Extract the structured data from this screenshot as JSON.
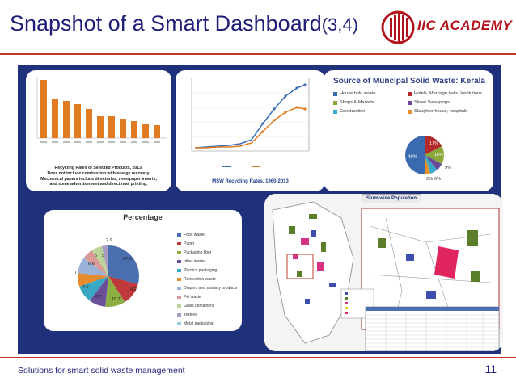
{
  "slide": {
    "title": "Snapshot of a Smart Dashboard",
    "title_suffix": "(3,4)",
    "logo_text": "IIC ACADEMY",
    "footer": "Solutions for smart solid waste management",
    "page_number": "11"
  },
  "colors": {
    "title": "#1f1f78",
    "rule": "#c0392b",
    "board": "#1f317a",
    "logo": "#b3121b"
  },
  "panels": {
    "recycling_products": {
      "caption_lines": [
        "Recycling Rates of Selected Products, 2013.",
        "Does not include combustion with energy recovery.",
        "Mechanical papers include directories, newspaper inserts,",
        "and some advertisement and direct mail printing."
      ]
    },
    "msw_rates": {
      "caption": "MSW Recycling Rates, 1960-2013"
    },
    "kerala_sources": {
      "title": "Source of Muncipal Solid Waste: Kerala",
      "legend": [
        {
          "label": "House hold waste",
          "color": "#3a6ab0"
        },
        {
          "label": "Hotels, Marriage halls, Institutions",
          "color": "#b22a2a"
        },
        {
          "label": "Shops & Markets",
          "color": "#8aa83a"
        },
        {
          "label": "Street Sweepings",
          "color": "#6a4a9a"
        },
        {
          "label": "Construction",
          "color": "#38a8c8"
        },
        {
          "label": "Slaughter house, hospitals",
          "color": "#e8902a"
        }
      ],
      "slice_labels": [
        "17%",
        "16%",
        "9%",
        "2%",
        "6%",
        "49%"
      ]
    },
    "percentage": {
      "title": "Percentage",
      "legend": [
        {
          "label": "Food waste",
          "color": "#4a6fb0"
        },
        {
          "label": "Paper",
          "color": "#c0393b"
        },
        {
          "label": "Packaging fiber",
          "color": "#8cae42"
        },
        {
          "label": "other waste",
          "color": "#6c4f9a"
        },
        {
          "label": "Plastics packaging",
          "color": "#3aa7c4"
        },
        {
          "label": "Renovation waste",
          "color": "#e78a2c"
        },
        {
          "label": "Diapers and sanitary products",
          "color": "#9bb3d8"
        },
        {
          "label": "Pet waste",
          "color": "#d99a98"
        },
        {
          "label": "Glass containers",
          "color": "#bcd39a"
        },
        {
          "label": "Textiles",
          "color": "#a99bc4"
        },
        {
          "label": "Metal packaging",
          "color": "#96cfe0"
        }
      ],
      "slice_labels": [
        "27.0",
        "14.2",
        "10.7",
        "8.7",
        "7.6",
        "7",
        "6.6",
        "5",
        "5",
        "2.9"
      ]
    },
    "slum_map": {
      "label": "Slum wise Population"
    }
  }
}
